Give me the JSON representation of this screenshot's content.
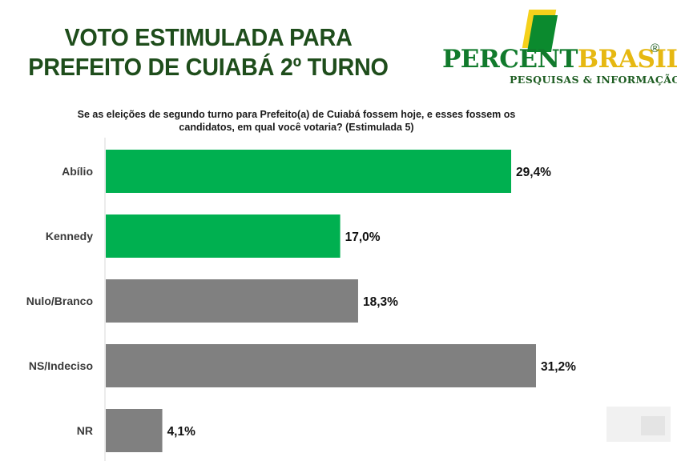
{
  "title": {
    "line1": "VOTO ESTIMULADA PARA",
    "line2": "PREFEITO DE  CUIABÁ 2º TURNO"
  },
  "logo": {
    "word_green": "PERCENT",
    "word_yellow": "BRASIL",
    "registered": "®",
    "subtitle": "PESQUISAS & INFORMAÇÃO"
  },
  "question": {
    "line1": "Se as eleições de segundo turno para Prefeito(a) de Cuiabá fossem hoje, e esses fossem os",
    "line2": "candidatos, em qual você votaria? (Estimulada 5)"
  },
  "colors": {
    "candidate": "#00b050",
    "other": "#808080",
    "title": "#1e4d1b",
    "axis": "#d9d9d9"
  },
  "chart_data": {
    "type": "bar",
    "orientation": "horizontal",
    "categories": [
      "Abílio",
      "Kennedy",
      "Nulo/Branco",
      "NS/Indeciso",
      "NR"
    ],
    "values": [
      29.4,
      17.0,
      18.3,
      31.2,
      4.1
    ],
    "labels": [
      "29,4%",
      "17,0%",
      "18,3%",
      "31,2%",
      "4,1%"
    ],
    "bar_color_keys": [
      "candidate",
      "candidate",
      "other",
      "other",
      "other"
    ],
    "unit": "%",
    "xlim": [
      0,
      31.2
    ],
    "grid": false,
    "legend": "none"
  }
}
